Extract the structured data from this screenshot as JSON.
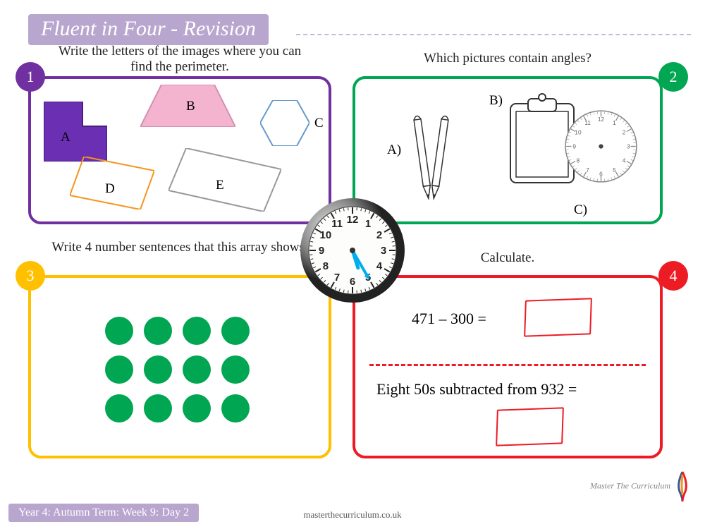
{
  "title": "Fluent in Four - Revision",
  "footer_tag": "Year 4: Autumn Term: Week 9: Day 2",
  "footer_url": "masterthecurriculum.co.uk",
  "brand": "Master The Curriculum",
  "colors": {
    "purple": "#7030a0",
    "green": "#00a651",
    "yellow": "#ffc000",
    "red": "#ed1c24",
    "lilac": "#b8a6ce",
    "pink": "#f4b4d0",
    "darkpurple": "#6b2fb3",
    "orange_line": "#f7941d",
    "hex_blue": "#6699cc"
  },
  "q1": {
    "number": "1",
    "prompt": "Write the letters of the images where you can find the perimeter.",
    "labels": {
      "A": "A",
      "B": "B",
      "C": "C",
      "D": "D",
      "E": "E"
    }
  },
  "q2": {
    "number": "2",
    "prompt": "Which pictures contain angles?",
    "labels": {
      "A": "A)",
      "B": "B)",
      "C": "C)"
    }
  },
  "q3": {
    "number": "3",
    "prompt": "Write 4 number sentences that this array shows.",
    "array": {
      "rows": 3,
      "cols": 4,
      "color": "#00a651"
    }
  },
  "q4": {
    "number": "4",
    "prompt": "Calculate.",
    "line1": "471 – 300 =",
    "line2": "Eight 50s subtracted from 932 ="
  },
  "center_clock": {
    "hour": 5,
    "minute": 25
  }
}
